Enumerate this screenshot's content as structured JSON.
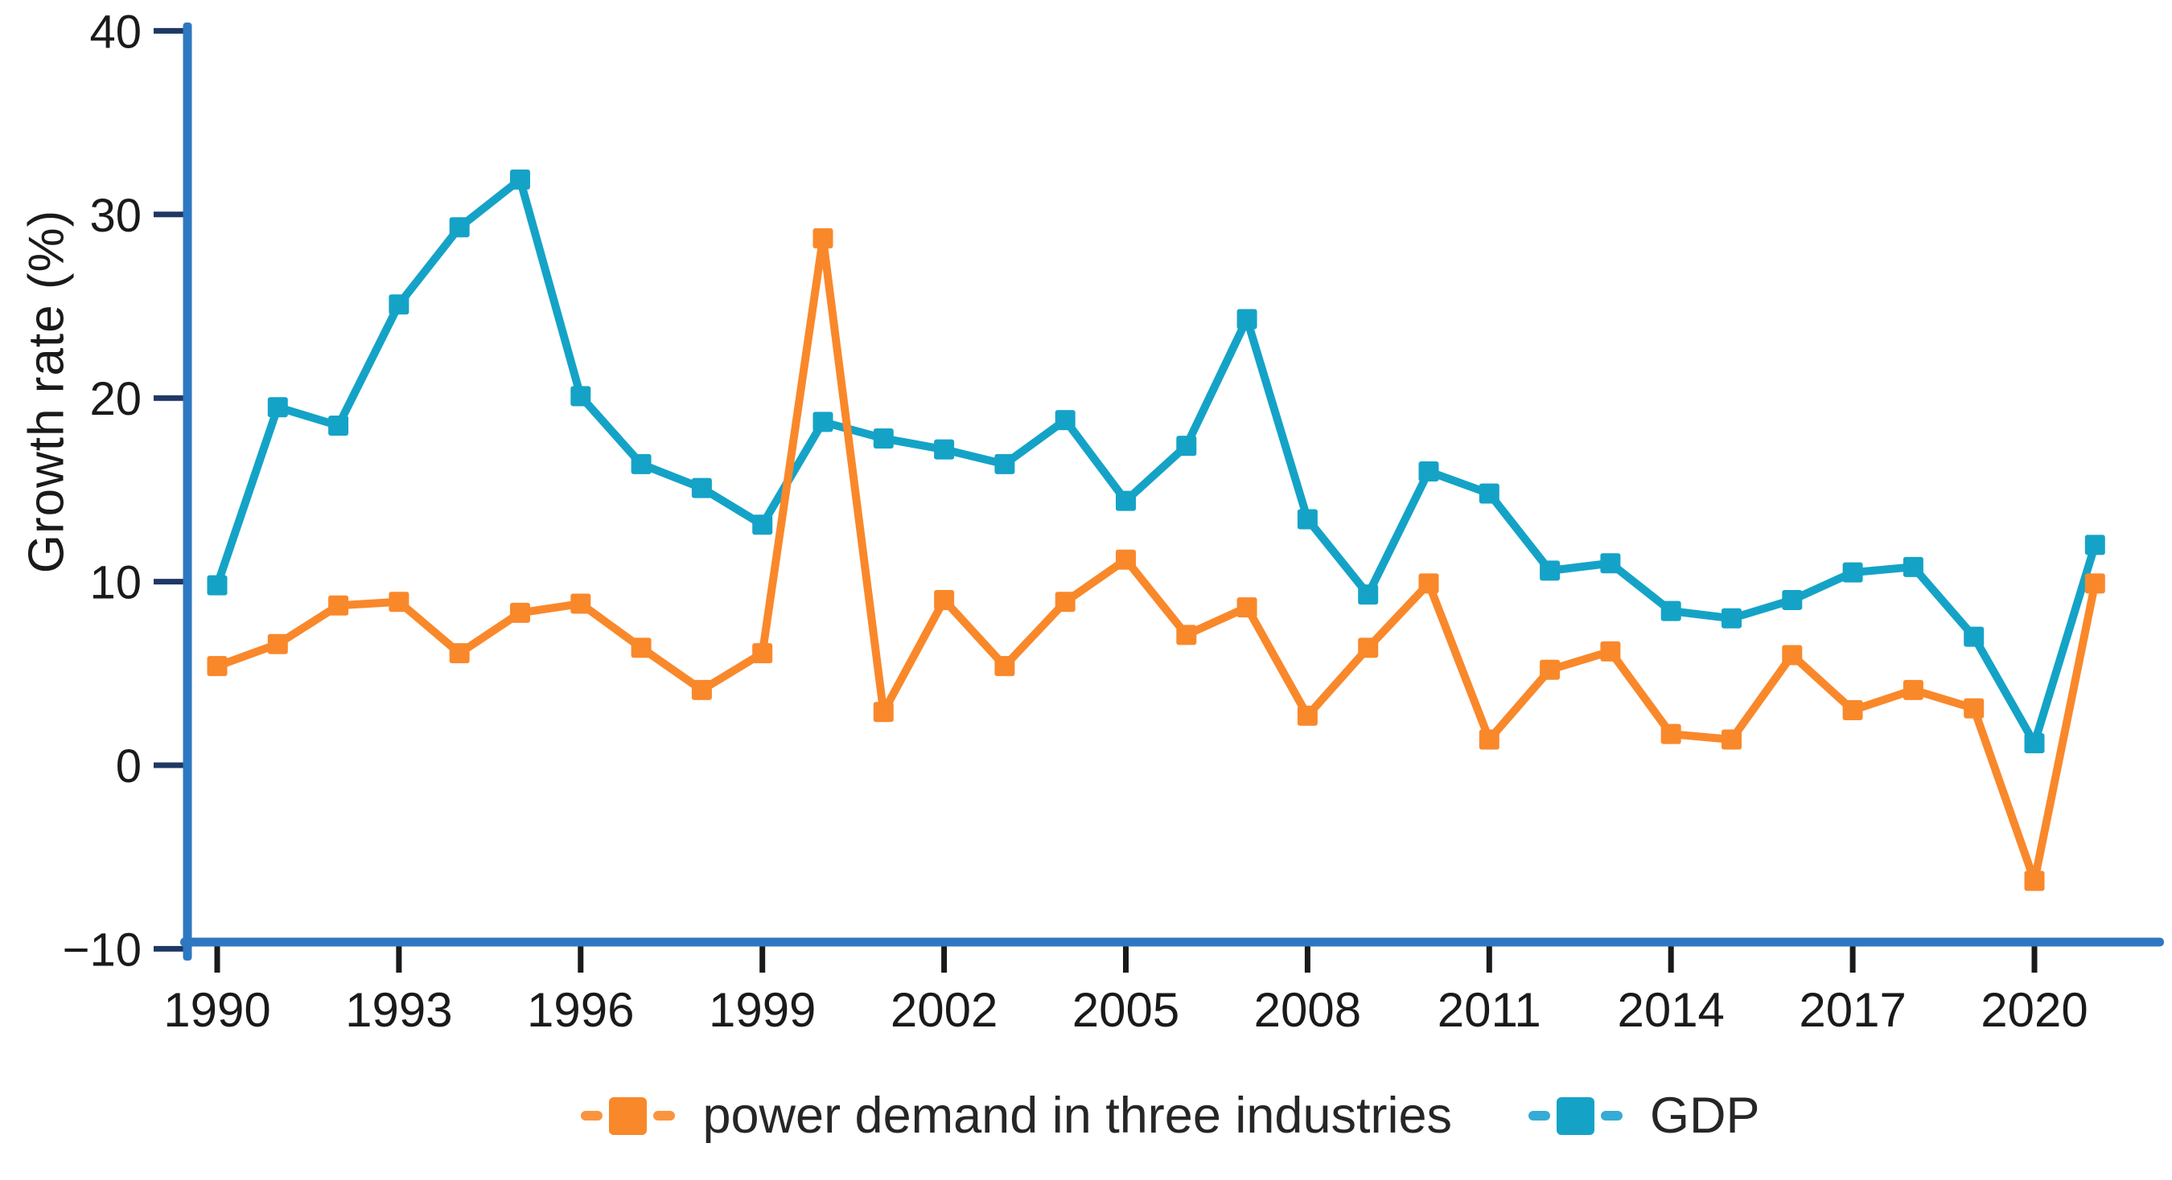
{
  "figure": {
    "background": "#ffffff",
    "axis_color": "#2e78c2",
    "y_tick_color": "#1f3864",
    "x_tick_color": "#1a1a1a",
    "text_color": "#1a1a1a",
    "ylabel": "Growth rate (%)",
    "y_ticks": [
      40,
      30,
      20,
      10,
      0,
      -10
    ],
    "x_ticks": [
      1990,
      1993,
      1996,
      1999,
      2002,
      2005,
      2008,
      2011,
      2014,
      2017,
      2020
    ]
  },
  "legend": {
    "items": [
      {
        "label": "power demand in three industries",
        "color": "#f9882b",
        "dash_color": "#f9953e"
      },
      {
        "label": "GDP",
        "color": "#14a3c7",
        "dash_color": "#36abd4"
      }
    ]
  },
  "chart_data": {
    "type": "line",
    "title": "",
    "xlabel": "",
    "ylabel": "Growth rate (%)",
    "marker": "square",
    "grid": false,
    "legend_position": "bottom",
    "xlim": [
      1989.5,
      2022.1
    ],
    "ylim": [
      -11.5,
      41
    ],
    "x": [
      1990,
      1991,
      1992,
      1993,
      1994,
      1995,
      1996,
      1997,
      1998,
      1999,
      2000,
      2001,
      2002,
      2003,
      2004,
      2005,
      2006,
      2007,
      2008,
      2009,
      2010,
      2011,
      2012,
      2013,
      2014,
      2015,
      2016,
      2017,
      2018,
      2019,
      2020,
      2021
    ],
    "series": [
      {
        "name": "GDP",
        "color": "#14a3c7",
        "values": [
          9.8,
          19.5,
          18.5,
          25.1,
          29.3,
          31.9,
          20.1,
          16.4,
          15.1,
          13.1,
          18.7,
          17.8,
          17.2,
          16.4,
          18.8,
          14.4,
          17.4,
          24.3,
          13.4,
          9.3,
          16.0,
          14.8,
          10.6,
          11.0,
          8.4,
          8.0,
          9.0,
          10.5,
          10.8,
          7.0,
          1.2,
          12.0
        ]
      },
      {
        "name": "power demand in three industries",
        "color": "#f9882b",
        "values": [
          5.4,
          6.6,
          8.7,
          8.9,
          6.1,
          8.3,
          8.8,
          6.4,
          4.1,
          6.1,
          28.7,
          2.9,
          9.0,
          5.4,
          8.9,
          11.2,
          7.1,
          8.6,
          2.7,
          6.4,
          9.9,
          1.4,
          5.2,
          6.2,
          1.7,
          1.4,
          6.0,
          3.0,
          4.1,
          3.1,
          -6.3,
          9.9
        ]
      }
    ]
  }
}
